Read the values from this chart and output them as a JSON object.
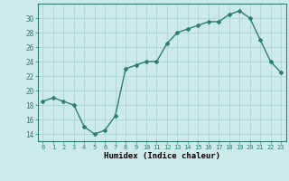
{
  "x": [
    0,
    1,
    2,
    3,
    4,
    5,
    6,
    7,
    8,
    9,
    10,
    11,
    12,
    13,
    14,
    15,
    16,
    17,
    18,
    19,
    20,
    21,
    22,
    23
  ],
  "y": [
    18.5,
    19.0,
    18.5,
    18.0,
    15.0,
    14.0,
    14.5,
    16.5,
    23.0,
    23.5,
    24.0,
    24.0,
    26.5,
    28.0,
    28.5,
    29.0,
    29.5,
    29.5,
    30.5,
    31.0,
    30.0,
    27.0,
    24.0,
    22.5
  ],
  "line_color": "#2e7d6e",
  "marker": "D",
  "marker_size": 2,
  "bg_color": "#cceae7",
  "grid_color": "#aed4d0",
  "xlabel": "Humidex (Indice chaleur)",
  "ylim": [
    13,
    32
  ],
  "xlim": [
    -0.5,
    23.5
  ],
  "yticks": [
    14,
    16,
    18,
    20,
    22,
    24,
    26,
    28,
    30
  ],
  "xticks": [
    0,
    1,
    2,
    3,
    4,
    5,
    6,
    7,
    8,
    9,
    10,
    11,
    12,
    13,
    14,
    15,
    16,
    17,
    18,
    19,
    20,
    21,
    22,
    23
  ],
  "xtick_labels": [
    "0",
    "1",
    "2",
    "3",
    "4",
    "5",
    "6",
    "7",
    "8",
    "9",
    "10",
    "11",
    "12",
    "13",
    "14",
    "15",
    "16",
    "17",
    "18",
    "19",
    "20",
    "21",
    "22",
    "23"
  ]
}
